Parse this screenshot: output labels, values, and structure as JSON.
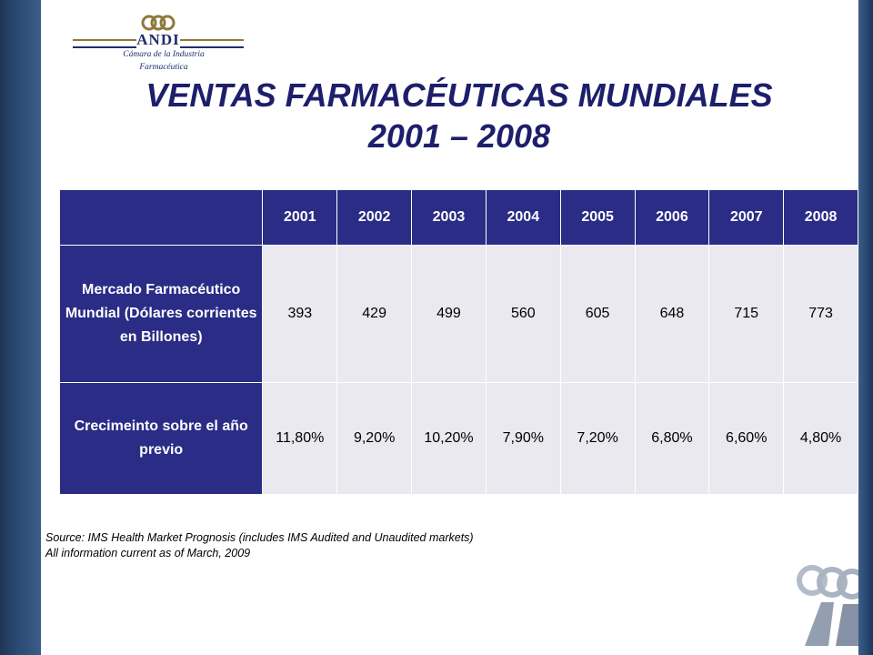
{
  "logo": {
    "name": "ANDI",
    "subtitle_line1": "Cámara de la Industria",
    "subtitle_line2": "Farmacéutica"
  },
  "title": {
    "line1": "VENTAS FARMACÉUTICAS MUNDIALES",
    "line2": "2001 – 2008"
  },
  "table": {
    "headers": [
      "2001",
      "2002",
      "2003",
      "2004",
      "2005",
      "2006",
      "2007",
      "2008"
    ],
    "rows": [
      {
        "label": "Mercado Farmacéutico Mundial (Dólares corrientes en Billones)",
        "values": [
          "393",
          "429",
          "499",
          "560",
          "605",
          "648",
          "715",
          "773"
        ]
      },
      {
        "label": "Crecimeinto sobre el año previo",
        "values": [
          "11,80%",
          "9,20%",
          "10,20%",
          "7,90%",
          "7,20%",
          "6,80%",
          "6,60%",
          "4,80%"
        ]
      }
    ]
  },
  "footer": {
    "source": "Source: IMS Health Market Prognosis (includes IMS Audited and Unaudited markets)",
    "note": "All information current as of March, 2009"
  },
  "colors": {
    "header_fill": "#2a2c86",
    "cell_fill": "#e9e9ef",
    "title_color": "#1d1f6b",
    "side_band": "#2b4a74"
  }
}
